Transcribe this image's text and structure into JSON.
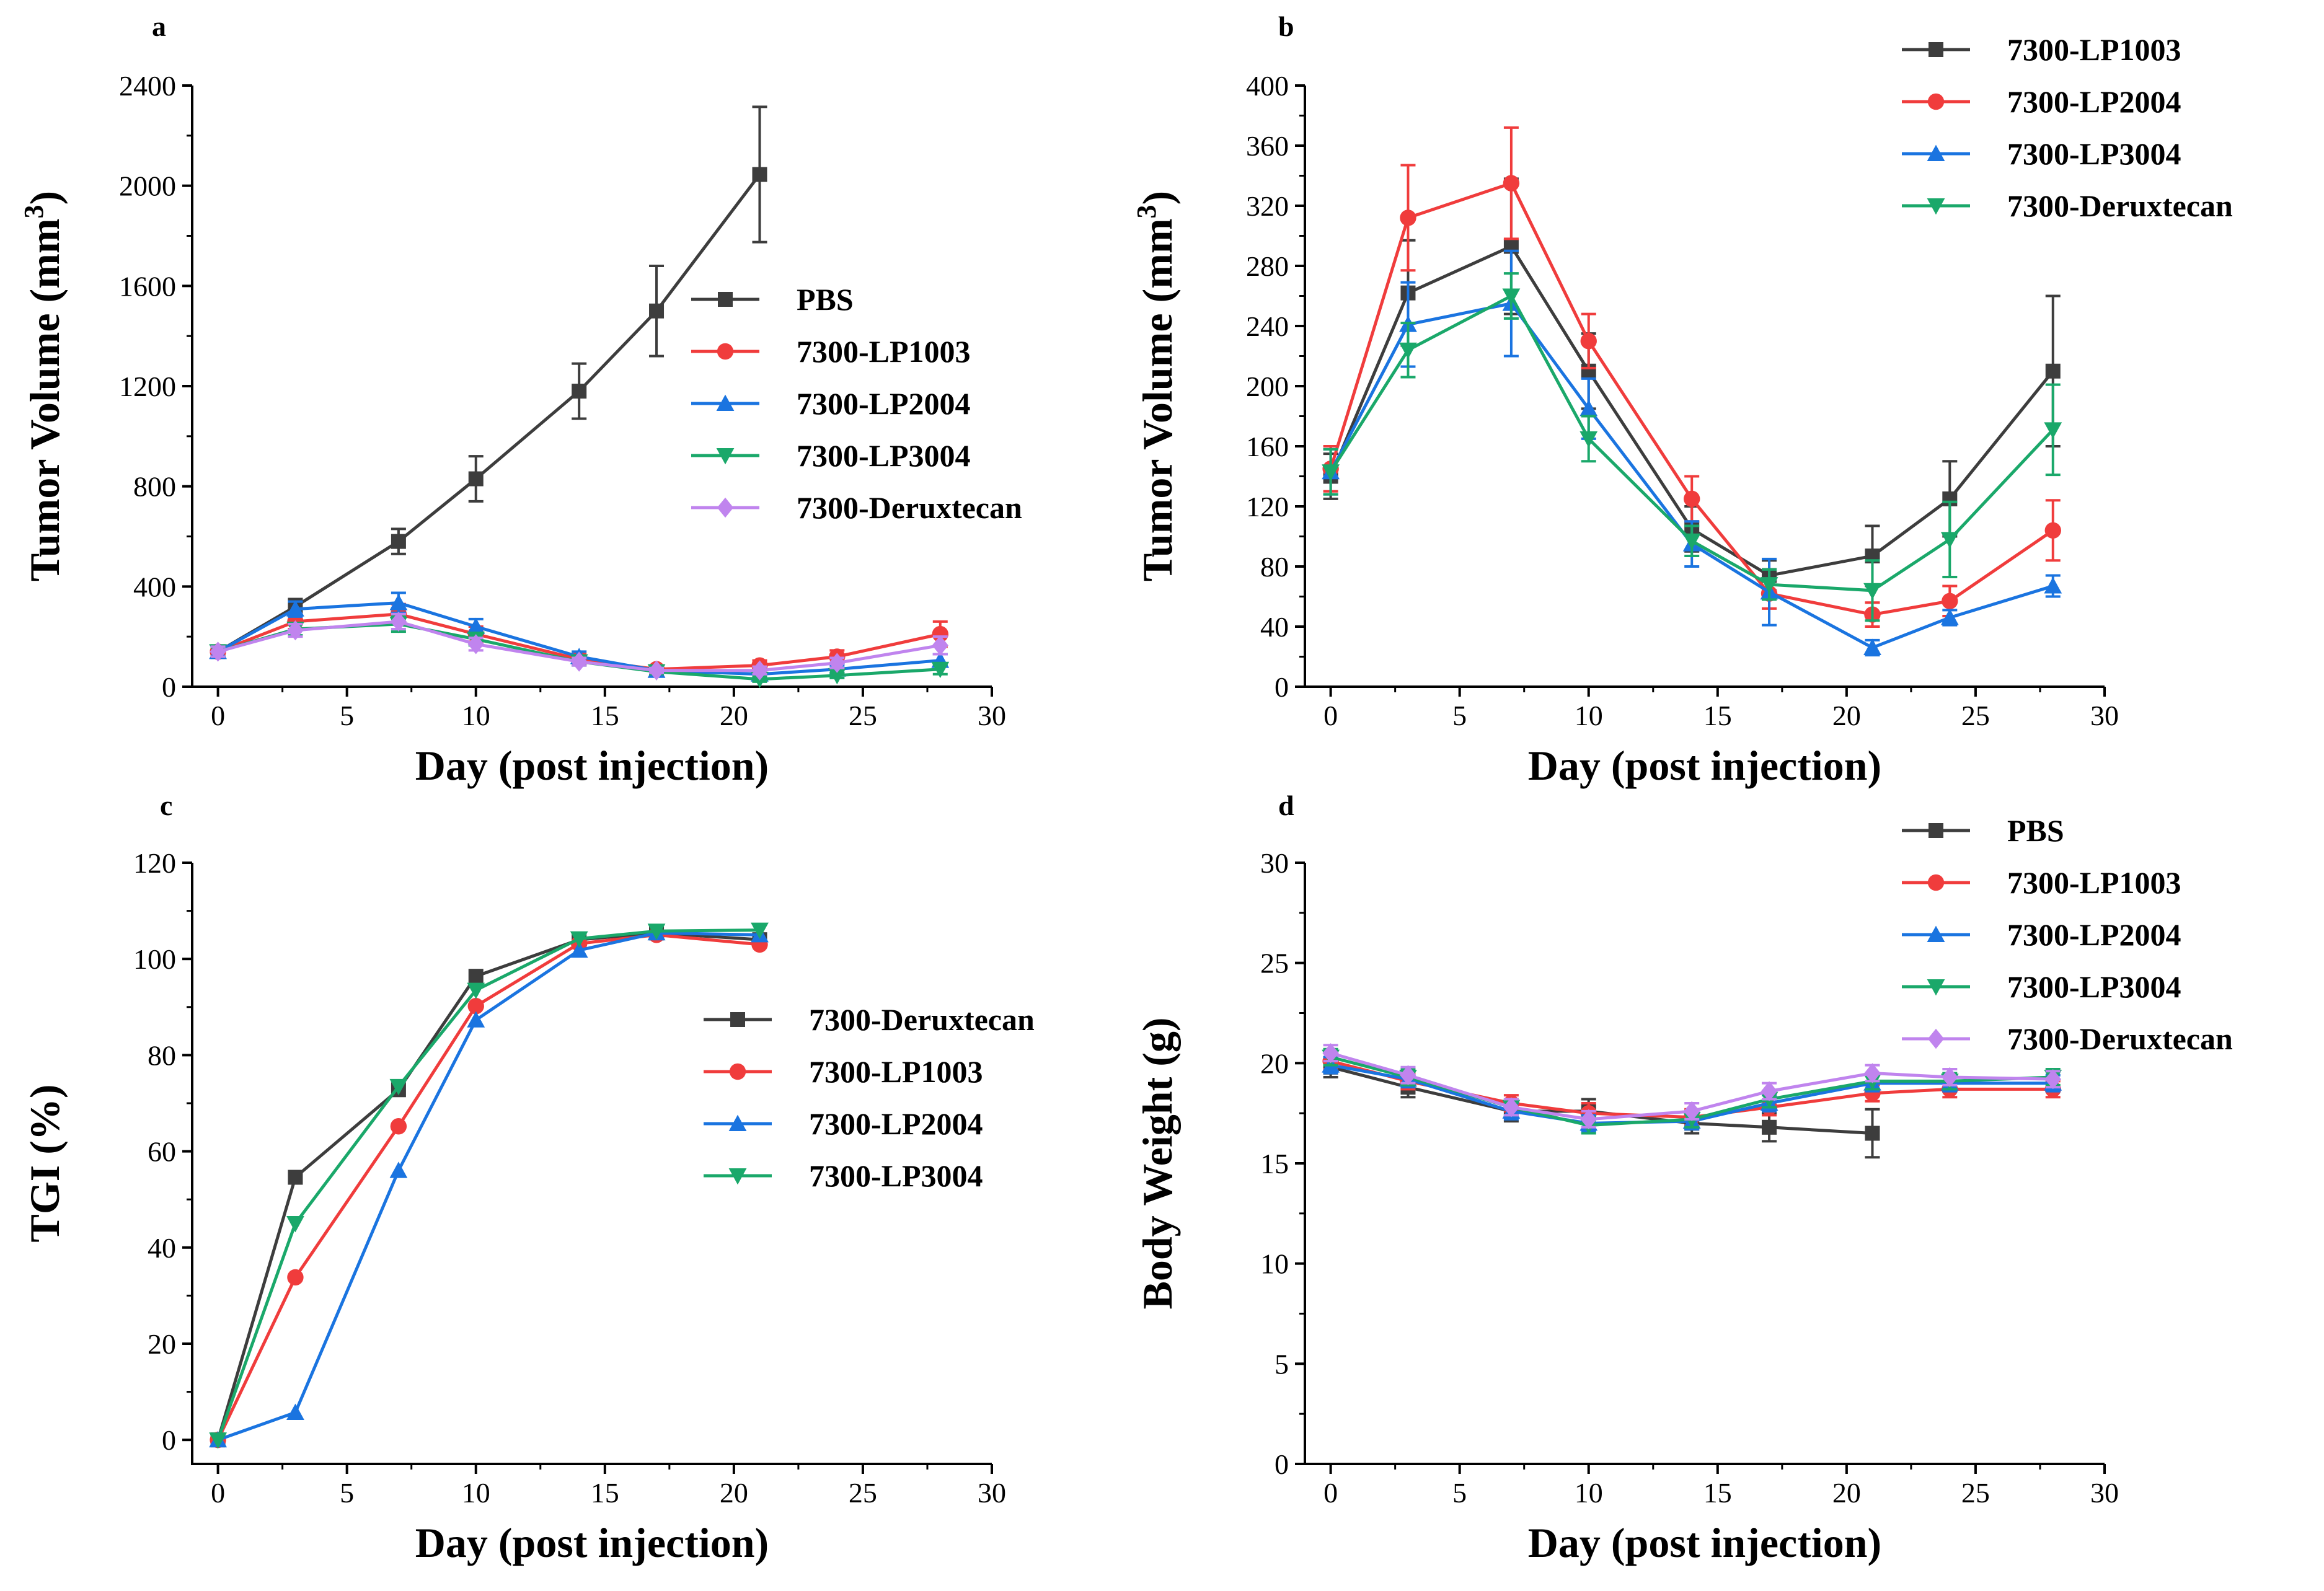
{
  "colors": {
    "black": "#3d3d3d",
    "red": "#f03c3c",
    "blue": "#1a74e0",
    "green": "#1aa86a",
    "purple": "#c084ee"
  },
  "chart_data": [
    {
      "panel": "a",
      "type": "line",
      "xlabel": "Day (post injection)",
      "ylabel_main": "Tumor Volume (mm",
      "ylabel_sup": "3",
      "ylabel_close": ")",
      "xlim": [
        -1,
        30
      ],
      "ylim": [
        0,
        2400
      ],
      "xticks": [
        0,
        5,
        10,
        15,
        20,
        25,
        30
      ],
      "yticks": [
        0,
        400,
        800,
        1200,
        1600,
        2000,
        2400
      ],
      "legend_position": "center-right",
      "series": [
        {
          "name": "PBS",
          "color": "black",
          "marker": "square",
          "x": [
            0,
            3,
            7,
            10,
            14,
            17,
            21
          ],
          "y": [
            140,
            320,
            580,
            830,
            1180,
            1500,
            2045
          ],
          "err": [
            20,
            30,
            50,
            90,
            110,
            180,
            270
          ]
        },
        {
          "name": "7300-LP1003",
          "color": "red",
          "marker": "circle",
          "x": [
            0,
            3,
            7,
            10,
            14,
            17,
            21,
            24,
            28
          ],
          "y": [
            140,
            260,
            290,
            210,
            110,
            70,
            85,
            120,
            210
          ],
          "err": [
            20,
            30,
            40,
            30,
            20,
            15,
            20,
            25,
            50
          ]
        },
        {
          "name": "7300-LP2004",
          "color": "blue",
          "marker": "triangle-up",
          "x": [
            0,
            3,
            7,
            10,
            14,
            17,
            21,
            24,
            28
          ],
          "y": [
            140,
            310,
            335,
            240,
            120,
            65,
            50,
            70,
            105
          ],
          "err": [
            20,
            30,
            40,
            30,
            20,
            15,
            10,
            15,
            25
          ]
        },
        {
          "name": "7300-LP3004",
          "color": "green",
          "marker": "triangle-down",
          "x": [
            0,
            3,
            7,
            10,
            14,
            17,
            21,
            24,
            28
          ],
          "y": [
            140,
            230,
            250,
            190,
            100,
            60,
            30,
            45,
            70
          ],
          "err": [
            20,
            25,
            30,
            25,
            15,
            10,
            10,
            10,
            20
          ]
        },
        {
          "name": "7300-Deruxtecan",
          "color": "purple",
          "marker": "diamond",
          "x": [
            0,
            3,
            7,
            10,
            14,
            17,
            21,
            24,
            28
          ],
          "y": [
            140,
            225,
            260,
            170,
            100,
            65,
            65,
            95,
            165
          ],
          "err": [
            20,
            25,
            30,
            25,
            15,
            10,
            15,
            20,
            35
          ]
        }
      ]
    },
    {
      "panel": "b",
      "type": "line",
      "xlabel": "Day (post injection)",
      "ylabel_main": "Tumor Volume (mm",
      "ylabel_sup": "3",
      "ylabel_close": ")",
      "xlim": [
        -1,
        30
      ],
      "ylim": [
        0,
        400
      ],
      "xticks": [
        0,
        5,
        10,
        15,
        20,
        25,
        30
      ],
      "yticks": [
        0,
        40,
        80,
        120,
        160,
        200,
        240,
        280,
        320,
        360,
        400
      ],
      "legend_position": "top-right",
      "series": [
        {
          "name": "7300-LP1003",
          "color": "black",
          "marker": "square",
          "x": [
            0,
            3,
            7,
            10,
            14,
            17,
            21,
            24,
            28
          ],
          "y": [
            140,
            262,
            293,
            210,
            105,
            74,
            87,
            125,
            210
          ],
          "err": [
            15,
            35,
            45,
            25,
            15,
            10,
            20,
            25,
            50
          ]
        },
        {
          "name": "7300-LP2004",
          "color": "red",
          "marker": "circle",
          "x": [
            0,
            3,
            7,
            10,
            14,
            17,
            21,
            24,
            28
          ],
          "y": [
            145,
            312,
            335,
            230,
            125,
            62,
            48,
            57,
            104
          ],
          "err": [
            15,
            35,
            37,
            18,
            15,
            10,
            8,
            10,
            20
          ]
        },
        {
          "name": "7300-LP3004",
          "color": "blue",
          "marker": "triangle-up",
          "x": [
            0,
            3,
            7,
            10,
            14,
            17,
            21,
            24,
            28
          ],
          "y": [
            143,
            241,
            255,
            185,
            95,
            63,
            26,
            46,
            67
          ],
          "err": [
            15,
            28,
            35,
            20,
            15,
            22,
            5,
            5,
            7
          ]
        },
        {
          "name": "7300-Deruxtecan",
          "color": "green",
          "marker": "triangle-down",
          "x": [
            0,
            3,
            7,
            10,
            14,
            17,
            21,
            24,
            28
          ],
          "y": [
            143,
            224,
            260,
            165,
            97,
            68,
            64,
            98,
            171
          ],
          "err": [
            15,
            18,
            15,
            15,
            10,
            10,
            20,
            25,
            30
          ]
        }
      ]
    },
    {
      "panel": "c",
      "type": "line",
      "xlabel": "Day (post injection)",
      "ylabel": "TGI (%)",
      "xlim": [
        -1,
        30
      ],
      "ylim": [
        -5,
        120
      ],
      "xticks": [
        0,
        5,
        10,
        15,
        20,
        25,
        30
      ],
      "yticks": [
        0,
        20,
        40,
        60,
        80,
        100,
        120
      ],
      "legend_position": "center-right",
      "series": [
        {
          "name": "7300-Deruxtecan",
          "color": "black",
          "marker": "square",
          "x": [
            0,
            3,
            7,
            10,
            14,
            17,
            21
          ],
          "y": [
            0,
            54.6,
            72.8,
            96.4,
            104,
            105.4,
            104
          ]
        },
        {
          "name": "7300-LP1003",
          "color": "red",
          "marker": "circle",
          "x": [
            0,
            3,
            7,
            10,
            14,
            17,
            21
          ],
          "y": [
            0,
            33.8,
            65.2,
            90.2,
            103.2,
            105,
            103
          ]
        },
        {
          "name": "7300-LP2004",
          "color": "blue",
          "marker": "triangle-up",
          "x": [
            0,
            3,
            7,
            10,
            14,
            17,
            21
          ],
          "y": [
            0,
            5.7,
            56,
            87.3,
            101.8,
            105.4,
            105
          ]
        },
        {
          "name": "7300-LP3004",
          "color": "green",
          "marker": "triangle-down",
          "x": [
            0,
            3,
            7,
            10,
            14,
            17,
            21
          ],
          "y": [
            0,
            45,
            73.5,
            93.5,
            104.2,
            105.8,
            106
          ]
        }
      ]
    },
    {
      "panel": "d",
      "type": "line",
      "xlabel": "Day (post injection)",
      "ylabel": "Body Weight (g)",
      "xlim": [
        -1,
        30
      ],
      "ylim": [
        0,
        30
      ],
      "xticks": [
        0,
        5,
        10,
        15,
        20,
        25,
        30
      ],
      "yticks": [
        0,
        5,
        10,
        15,
        20,
        25,
        30
      ],
      "legend_position": "top-right",
      "series": [
        {
          "name": "PBS",
          "color": "black",
          "marker": "square",
          "x": [
            0,
            3,
            7,
            10,
            14,
            17,
            21
          ],
          "y": [
            19.8,
            18.8,
            17.6,
            17.6,
            17.0,
            16.8,
            16.5
          ],
          "err": [
            0.5,
            0.5,
            0.5,
            0.6,
            0.5,
            0.7,
            1.2
          ]
        },
        {
          "name": "7300-LP1003",
          "color": "red",
          "marker": "circle",
          "x": [
            0,
            3,
            7,
            10,
            14,
            17,
            21,
            24,
            28
          ],
          "y": [
            20.1,
            19.1,
            18.0,
            17.5,
            17.3,
            17.8,
            18.5,
            18.7,
            18.7
          ],
          "err": [
            0.4,
            0.4,
            0.4,
            0.5,
            0.4,
            0.4,
            0.4,
            0.4,
            0.4
          ]
        },
        {
          "name": "7300-LP2004",
          "color": "blue",
          "marker": "triangle-up",
          "x": [
            0,
            3,
            7,
            10,
            14,
            17,
            21,
            24,
            28
          ],
          "y": [
            19.9,
            19.2,
            17.6,
            17.0,
            17.1,
            18.0,
            19.0,
            19.0,
            19.0
          ],
          "err": [
            0.4,
            0.4,
            0.4,
            0.4,
            0.4,
            0.4,
            0.4,
            0.4,
            0.4
          ]
        },
        {
          "name": "7300-LP3004",
          "color": "green",
          "marker": "triangle-down",
          "x": [
            0,
            3,
            7,
            10,
            14,
            17,
            21,
            24,
            28
          ],
          "y": [
            20.3,
            19.3,
            17.8,
            16.9,
            17.2,
            18.2,
            19.1,
            19.1,
            19.3
          ],
          "err": [
            0.4,
            0.4,
            0.4,
            0.4,
            0.4,
            0.4,
            0.4,
            0.4,
            0.4
          ]
        },
        {
          "name": "7300-Deruxtecan",
          "color": "purple",
          "marker": "diamond",
          "x": [
            0,
            3,
            7,
            10,
            14,
            17,
            21,
            24,
            28
          ],
          "y": [
            20.5,
            19.4,
            17.8,
            17.2,
            17.6,
            18.6,
            19.5,
            19.3,
            19.2
          ],
          "err": [
            0.4,
            0.4,
            0.4,
            0.4,
            0.4,
            0.4,
            0.4,
            0.4,
            0.4
          ]
        }
      ]
    }
  ]
}
